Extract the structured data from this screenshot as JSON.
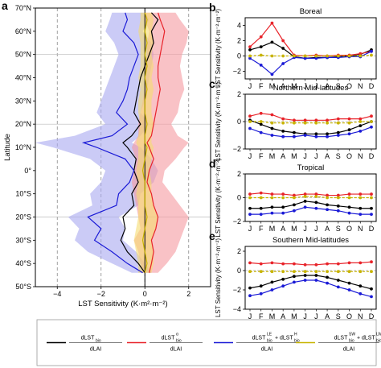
{
  "panel_letters": [
    "a",
    "b",
    "c",
    "d",
    "e"
  ],
  "colors": {
    "total": "#000000",
    "albedo": "#e8232a",
    "le_h": "#1a1ad6",
    "sw_lw": "#c8b400",
    "albedo_band": "#f59aa0",
    "le_h_band": "#a9a9f0",
    "sw_lw_band": "#f5dc70",
    "total_band": "#bfbfbf"
  },
  "chart_data": [
    {
      "type": "line",
      "panel": "a",
      "xlabel": "LST Sensitivity (K·m²·m⁻²)",
      "ylabel": "Latitude",
      "xlim": [
        -5,
        3
      ],
      "ylim": [
        -50,
        70
      ],
      "xticks": [
        -4,
        -2,
        0,
        2
      ],
      "xtick_labels": [
        "−4",
        "−2",
        "0",
        "2"
      ],
      "yticks": [
        -50,
        -40,
        -30,
        -20,
        -10,
        0,
        10,
        20,
        30,
        40,
        50,
        60,
        70
      ],
      "ytick_labels": [
        "50°S",
        "40°S",
        "30°S",
        "20°S",
        "10°S",
        "0°",
        "10°N",
        "20°N",
        "30°N",
        "40°N",
        "50°N",
        "60°N",
        "70°N"
      ],
      "orientation": "horizontal-values-vertical-latitude",
      "grid": "dashed-vertical-at-ticks, horizontal at 50°N 20°N 20°S",
      "lat": [
        -44,
        -40,
        -35,
        -30,
        -25,
        -20,
        -15,
        -10,
        -5,
        0,
        5,
        10,
        12,
        15,
        20,
        25,
        30,
        35,
        40,
        45,
        50,
        55,
        60,
        65,
        68
      ],
      "series": [
        {
          "key": "total",
          "values": [
            0.0,
            -0.3,
            -0.8,
            -1.1,
            -0.9,
            -1.0,
            -0.5,
            -0.6,
            -0.3,
            -0.5,
            -0.4,
            -0.8,
            -1.0,
            -0.6,
            -0.2,
            -0.5,
            -0.4,
            -0.3,
            -0.2,
            0.0,
            0.2,
            0.4,
            0.3,
            0.6,
            0.3
          ]
        },
        {
          "key": "albedo",
          "values": [
            0.2,
            0.3,
            0.4,
            0.3,
            0.5,
            0.6,
            0.4,
            0.3,
            0.1,
            0.2,
            0.4,
            0.2,
            0.1,
            0.3,
            0.4,
            0.5,
            0.6,
            0.7,
            0.6,
            0.6,
            0.7,
            0.8,
            0.9,
            0.7,
            0.6
          ]
        },
        {
          "key": "le_h",
          "values": [
            -0.1,
            -0.8,
            -1.5,
            -2.3,
            -2.0,
            -2.6,
            -1.3,
            -1.2,
            -0.7,
            -0.5,
            -0.9,
            -2.2,
            -2.8,
            -1.5,
            -0.8,
            -1.3,
            -1.0,
            -0.8,
            -0.7,
            -0.5,
            -0.3,
            -0.5,
            -1.0,
            -0.8,
            -0.9
          ]
        },
        {
          "key": "sw_lw",
          "values": [
            0.0,
            0.1,
            0.0,
            -0.1,
            0.0,
            0.1,
            0.0,
            0.0,
            0.0,
            -0.1,
            0.0,
            0.1,
            0.0,
            0.0,
            0.1,
            0.0,
            0.0,
            0.1,
            0.0,
            0.1,
            0.0,
            0.1,
            0.0,
            0.1,
            0.0
          ]
        }
      ],
      "bands": [
        {
          "key": "le_h",
          "lower": [
            -0.6,
            -1.5,
            -2.6,
            -3.2,
            -3.0,
            -3.5,
            -2.4,
            -2.5,
            -2.0,
            -1.8,
            -2.5,
            -4.2,
            -5.0,
            -3.2,
            -1.8,
            -2.2,
            -2.0,
            -1.8,
            -1.6,
            -1.4,
            -1.2,
            -1.4,
            -1.8,
            -1.6,
            -1.5
          ],
          "upper": [
            0.3,
            0.0,
            -0.4,
            -1.0,
            -0.9,
            -1.2,
            -0.3,
            -0.2,
            0.4,
            0.6,
            0.3,
            -0.2,
            -0.6,
            -0.2,
            0.2,
            -0.2,
            0.0,
            0.1,
            0.2,
            0.3,
            0.4,
            0.3,
            -0.1,
            0.2,
            0.0
          ]
        },
        {
          "key": "albedo",
          "lower": [
            -0.1,
            -0.2,
            -0.3,
            -0.5,
            -0.2,
            -0.3,
            -0.4,
            -0.5,
            -0.6,
            -0.5,
            -0.4,
            -0.6,
            -0.5,
            -0.3,
            -0.3,
            -0.2,
            -0.1,
            0.0,
            0.0,
            0.0,
            0.1,
            0.1,
            0.2,
            0.0,
            0.0
          ],
          "upper": [
            0.6,
            1.0,
            1.4,
            1.6,
            1.8,
            2.0,
            1.6,
            1.2,
            0.8,
            0.9,
            1.4,
            1.8,
            2.0,
            1.5,
            1.2,
            1.5,
            1.6,
            1.8,
            1.7,
            1.6,
            1.7,
            1.9,
            2.0,
            1.6,
            1.4
          ]
        },
        {
          "key": "sw_lw",
          "lower": [
            -0.3,
            -0.3,
            -0.4,
            -0.5,
            -0.4,
            -0.3,
            -0.3,
            -0.4,
            -0.3,
            -0.4,
            -0.3,
            -0.3,
            -0.4,
            -0.3,
            -0.2,
            -0.3,
            -0.3,
            -0.2,
            -0.3,
            -0.2,
            -0.2,
            -0.2,
            -0.3,
            -0.2,
            -0.2
          ],
          "upper": [
            0.3,
            0.4,
            0.4,
            0.3,
            0.5,
            0.6,
            0.4,
            0.3,
            0.3,
            0.2,
            0.3,
            0.4,
            0.3,
            0.3,
            0.4,
            0.3,
            0.3,
            0.4,
            0.3,
            0.4,
            0.3,
            0.4,
            0.3,
            0.4,
            0.3
          ]
        }
      ]
    },
    {
      "type": "line",
      "panel": "b",
      "title": "Boreal",
      "ylabel": "LST Sensitivity (K·m⁻²·m⁻²)",
      "categories": [
        "J",
        "F",
        "M",
        "A",
        "M",
        "J",
        "J",
        "A",
        "S",
        "O",
        "N",
        "D"
      ],
      "ylim": [
        -3,
        5
      ],
      "yticks": [
        -2,
        0,
        2,
        4
      ],
      "series": [
        {
          "key": "total",
          "values": [
            0.8,
            1.2,
            1.8,
            1.0,
            -0.1,
            -0.3,
            -0.2,
            -0.2,
            -0.1,
            0.0,
            0.2,
            0.8
          ]
        },
        {
          "key": "albedo",
          "values": [
            1.2,
            2.5,
            4.3,
            2.0,
            0.1,
            0.0,
            0.1,
            0.0,
            0.1,
            0.1,
            0.3,
            0.6
          ]
        },
        {
          "key": "le_h",
          "values": [
            -0.3,
            -1.2,
            -2.4,
            -1.0,
            -0.2,
            -0.3,
            -0.3,
            -0.2,
            -0.2,
            -0.1,
            -0.1,
            0.6
          ]
        },
        {
          "key": "sw_lw",
          "values": [
            0.0,
            0.1,
            0.0,
            0.0,
            0.0,
            0.0,
            0.0,
            0.0,
            0.0,
            0.0,
            0.0,
            0.1
          ]
        }
      ]
    },
    {
      "type": "line",
      "panel": "c",
      "title": "Northern Mid-latitudes",
      "ylabel": "LST Sensitivity (K·m⁻²·m⁻²)",
      "categories": [
        "J",
        "F",
        "M",
        "A",
        "M",
        "J",
        "J",
        "A",
        "S",
        "O",
        "N",
        "D"
      ],
      "ylim": [
        -2,
        2
      ],
      "yticks": [
        -2,
        0,
        2
      ],
      "series": [
        {
          "key": "total",
          "values": [
            0.1,
            -0.2,
            -0.5,
            -0.7,
            -0.8,
            -0.9,
            -0.9,
            -0.9,
            -0.8,
            -0.6,
            -0.3,
            0.0
          ]
        },
        {
          "key": "albedo",
          "values": [
            0.4,
            0.6,
            0.5,
            0.2,
            0.1,
            0.1,
            0.1,
            0.1,
            0.2,
            0.2,
            0.2,
            0.4
          ]
        },
        {
          "key": "le_h",
          "values": [
            -0.5,
            -0.8,
            -1.0,
            -1.1,
            -1.1,
            -1.0,
            -1.1,
            -1.1,
            -1.0,
            -0.9,
            -0.7,
            -0.4
          ]
        },
        {
          "key": "sw_lw",
          "values": [
            0.0,
            0.0,
            -0.1,
            -0.1,
            -0.1,
            -0.1,
            -0.1,
            -0.1,
            -0.1,
            -0.1,
            0.0,
            0.0
          ]
        }
      ]
    },
    {
      "type": "line",
      "panel": "d",
      "title": "Tropical",
      "ylabel": "LST Sensitivity (K·m⁻²·m⁻²)",
      "categories": [
        "J",
        "F",
        "M",
        "A",
        "M",
        "J",
        "J",
        "A",
        "S",
        "O",
        "N",
        "D"
      ],
      "ylim": [
        -2,
        2
      ],
      "yticks": [
        -2,
        0,
        2
      ],
      "series": [
        {
          "key": "total",
          "values": [
            -0.9,
            -0.9,
            -0.8,
            -0.8,
            -0.6,
            -0.3,
            -0.4,
            -0.6,
            -0.7,
            -0.8,
            -0.9,
            -0.9
          ]
        },
        {
          "key": "albedo",
          "values": [
            0.3,
            0.4,
            0.3,
            0.3,
            0.2,
            0.3,
            0.3,
            0.2,
            0.2,
            0.3,
            0.3,
            0.3
          ]
        },
        {
          "key": "le_h",
          "values": [
            -1.4,
            -1.4,
            -1.3,
            -1.3,
            -1.1,
            -0.8,
            -0.9,
            -1.0,
            -1.1,
            -1.3,
            -1.4,
            -1.4
          ]
        },
        {
          "key": "sw_lw",
          "values": [
            0.0,
            0.0,
            0.0,
            0.0,
            0.0,
            0.1,
            0.1,
            0.0,
            0.0,
            0.0,
            0.0,
            0.0
          ]
        }
      ]
    },
    {
      "type": "line",
      "panel": "e",
      "title": "Southern Mid-latitudes",
      "ylabel": "LST Sensitivity (K·m⁻²·m⁻²)",
      "categories": [
        "J",
        "F",
        "M",
        "A",
        "M",
        "J",
        "J",
        "A",
        "S",
        "O",
        "N",
        "D"
      ],
      "ylim": [
        -4,
        2.5
      ],
      "yticks": [
        -4,
        -2,
        0,
        2
      ],
      "series": [
        {
          "key": "total",
          "values": [
            -1.8,
            -1.6,
            -1.2,
            -0.9,
            -0.6,
            -0.5,
            -0.5,
            -0.7,
            -1.0,
            -1.3,
            -1.6,
            -1.9
          ]
        },
        {
          "key": "albedo",
          "values": [
            0.8,
            0.7,
            0.8,
            0.7,
            0.7,
            0.6,
            0.6,
            0.7,
            0.7,
            0.8,
            0.8,
            0.9
          ]
        },
        {
          "key": "le_h",
          "values": [
            -2.6,
            -2.4,
            -2.0,
            -1.6,
            -1.2,
            -1.0,
            -1.0,
            -1.3,
            -1.7,
            -2.0,
            -2.4,
            -2.7
          ]
        },
        {
          "key": "sw_lw",
          "values": [
            -0.1,
            -0.1,
            -0.1,
            -0.1,
            -0.1,
            -0.1,
            -0.1,
            -0.1,
            -0.1,
            -0.1,
            -0.1,
            -0.1
          ]
        }
      ]
    }
  ],
  "legend": [
    {
      "key": "total",
      "num": "dLST",
      "num_sub": "bio",
      "den": "dLAI"
    },
    {
      "key": "albedo",
      "num": "dLST",
      "num_sub": "bio",
      "num_sup": "α",
      "den": "dLAI"
    },
    {
      "key": "le_h",
      "num": "dLST",
      "num_sub": "bio",
      "num_sup": "LE",
      "num2": "dLST",
      "num2_sub": "bio",
      "num2_sup": "H",
      "den": "dLAI"
    },
    {
      "key": "sw_lw",
      "num": "dLST",
      "num_sub": "bio",
      "num_sup": "SW",
      "num2": "dLST",
      "num2_sub": "bio",
      "num2_sup": "LW",
      "den": "dLAI"
    }
  ]
}
